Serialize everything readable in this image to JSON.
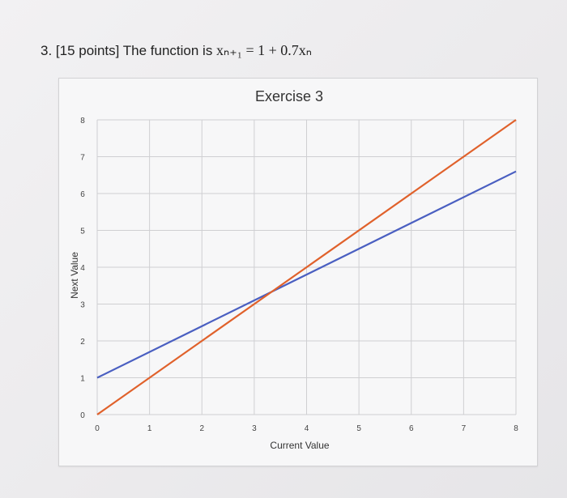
{
  "question": {
    "prefix": "3. [15 points] The function is ",
    "formula": "xₙ₊₁  = 1 + 0.7xₙ"
  },
  "chart_data": {
    "type": "line",
    "title": "Exercise 3",
    "xlabel": "Current Value",
    "ylabel": "Next Value",
    "xlim": [
      0,
      8
    ],
    "ylim": [
      0,
      8
    ],
    "x_ticks": [
      "0",
      "1",
      "2",
      "3",
      "4",
      "5",
      "6",
      "7",
      "8"
    ],
    "y_ticks": [
      "0",
      "1",
      "2",
      "3",
      "4",
      "5",
      "6",
      "7",
      "8"
    ],
    "grid": true,
    "series": [
      {
        "color": "#4a5fc1",
        "x": [
          0,
          8
        ],
        "y": [
          1,
          6.6
        ]
      },
      {
        "color": "#e0612b",
        "x": [
          0,
          8
        ],
        "y": [
          0,
          8
        ]
      }
    ]
  }
}
